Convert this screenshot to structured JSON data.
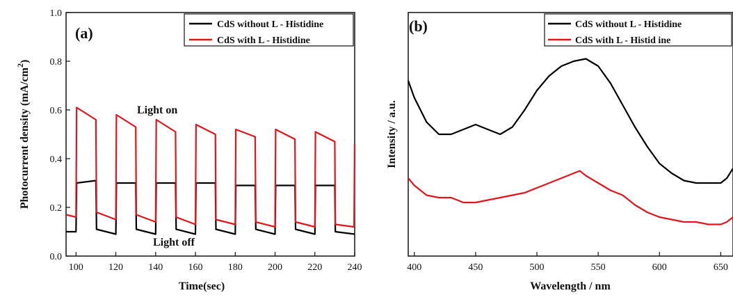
{
  "chart_data": [
    {
      "type": "line",
      "panel_label": "(a)",
      "xlabel": "Time(sec)",
      "ylabel": "Photocurrent density (mA/cm",
      "ylabel_sup": "2",
      "ylabel_close": ")",
      "xlim": [
        95,
        240
      ],
      "ylim": [
        0.0,
        1.0
      ],
      "xticks": [
        100,
        120,
        140,
        160,
        180,
        200,
        220,
        240
      ],
      "yticks": [
        0.0,
        0.2,
        0.4,
        0.6,
        0.8,
        1.0
      ],
      "xtick_labels": [
        "100",
        "120",
        "140",
        "160",
        "180",
        "200",
        "220",
        "240"
      ],
      "ytick_labels": [
        "0.0",
        "0.2",
        "0.4",
        "0.6",
        "0.8",
        "1.0"
      ],
      "legend_position": "top-right",
      "annotations": [
        {
          "text": "Light on",
          "x": 162,
          "y": 0.58
        },
        {
          "text": "Light off",
          "x": 162,
          "y": 0.04
        }
      ],
      "series": [
        {
          "name": "CdS without L - Histidine",
          "color": "#000000",
          "x": [
            95,
            100,
            100.3,
            110,
            110.3,
            120,
            120.3,
            130,
            130.3,
            140,
            140.3,
            150,
            150.3,
            160,
            160.3,
            170,
            170.3,
            180,
            180.3,
            190,
            190.3,
            200,
            200.3,
            210,
            210.3,
            220,
            220.3,
            230,
            230.3,
            240
          ],
          "y": [
            0.1,
            0.1,
            0.3,
            0.31,
            0.11,
            0.09,
            0.3,
            0.3,
            0.11,
            0.09,
            0.3,
            0.3,
            0.11,
            0.09,
            0.3,
            0.3,
            0.11,
            0.09,
            0.29,
            0.29,
            0.11,
            0.09,
            0.29,
            0.29,
            0.11,
            0.09,
            0.29,
            0.29,
            0.1,
            0.09
          ]
        },
        {
          "name": "CdS with L - Histidine",
          "color": "#e3141b",
          "x": [
            95,
            100,
            100.3,
            110,
            110.3,
            120,
            120.3,
            130,
            130.3,
            140,
            140.3,
            150,
            150.3,
            160,
            160.3,
            170,
            170.3,
            180,
            180.3,
            190,
            190.3,
            200,
            200.3,
            210,
            210.3,
            220,
            220.3,
            230,
            230.3,
            239.7,
            240
          ],
          "y": [
            0.17,
            0.16,
            0.61,
            0.56,
            0.18,
            0.15,
            0.58,
            0.53,
            0.17,
            0.14,
            0.56,
            0.51,
            0.16,
            0.13,
            0.54,
            0.5,
            0.15,
            0.13,
            0.52,
            0.49,
            0.14,
            0.12,
            0.52,
            0.48,
            0.14,
            0.12,
            0.51,
            0.47,
            0.13,
            0.12,
            0.46
          ]
        }
      ]
    },
    {
      "type": "line",
      "panel_label": "(b)",
      "xlabel": "Wavelength  / nm",
      "ylabel": "Intensity / a.u.",
      "xlim": [
        395,
        660
      ],
      "ylim": [
        0,
        1
      ],
      "xticks": [
        400,
        450,
        500,
        550,
        600,
        650
      ],
      "xtick_labels": [
        "400",
        "450",
        "500",
        "550",
        "600",
        "650"
      ],
      "legend_position": "top-right",
      "series": [
        {
          "name": "CdS  without L - Histidine",
          "color": "#000000",
          "x": [
            395,
            400,
            410,
            420,
            430,
            440,
            450,
            460,
            470,
            480,
            490,
            500,
            510,
            520,
            530,
            540,
            550,
            560,
            570,
            580,
            590,
            600,
            610,
            620,
            630,
            640,
            650,
            655,
            660
          ],
          "y": [
            0.72,
            0.65,
            0.55,
            0.5,
            0.5,
            0.52,
            0.54,
            0.52,
            0.5,
            0.53,
            0.6,
            0.68,
            0.74,
            0.78,
            0.8,
            0.81,
            0.78,
            0.71,
            0.62,
            0.53,
            0.45,
            0.38,
            0.34,
            0.31,
            0.3,
            0.3,
            0.3,
            0.32,
            0.36
          ]
        },
        {
          "name": "CdS with L - Histid ine",
          "color": "#e3141b",
          "x": [
            395,
            400,
            410,
            420,
            430,
            440,
            450,
            460,
            470,
            480,
            490,
            500,
            510,
            520,
            530,
            535,
            540,
            550,
            560,
            570,
            580,
            590,
            600,
            610,
            620,
            630,
            640,
            650,
            655,
            660
          ],
          "y": [
            0.32,
            0.29,
            0.25,
            0.24,
            0.24,
            0.22,
            0.22,
            0.23,
            0.24,
            0.25,
            0.26,
            0.28,
            0.3,
            0.32,
            0.34,
            0.35,
            0.33,
            0.3,
            0.27,
            0.25,
            0.21,
            0.18,
            0.16,
            0.15,
            0.14,
            0.14,
            0.13,
            0.13,
            0.14,
            0.16
          ]
        }
      ]
    }
  ]
}
